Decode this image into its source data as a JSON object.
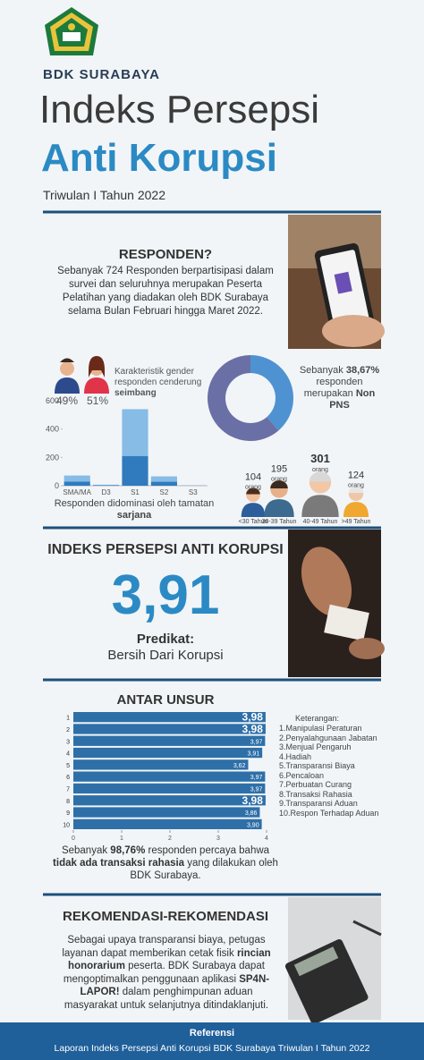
{
  "header": {
    "org": "BDK SURABAYA",
    "title_line1": "Indeks Persepsi",
    "title_line2": "Anti Korupsi",
    "subtitle": "Triwulan I Tahun 2022"
  },
  "responden": {
    "title": "RESPONDEN?",
    "text": "Sebanyak 724 Responden berpartisipasi dalam survei dan seluruhnya merupakan Peserta Pelatihan yang diadakan oleh BDK Surabaya selama Bulan Februari hingga Maret 2022."
  },
  "gender": {
    "text_parts": [
      "Karakteristik gender responden cenderung ",
      "seimbang"
    ],
    "male_label": "49%",
    "female_label": "51%"
  },
  "employment": {
    "chart_data": {
      "type": "donut",
      "values": [
        38.67,
        61.33
      ],
      "colors": [
        "#4f92d2",
        "#6a6fa6"
      ]
    },
    "text_parts": [
      "Sebanyak ",
      "38,67%",
      " responden merupakan ",
      "Non PNS"
    ]
  },
  "education": {
    "chart_data": {
      "type": "stacked_bar",
      "categories": [
        "SMA/MA",
        "D3",
        "S1",
        "S2",
        "S3"
      ],
      "series": [
        {
          "color": "#2f7bbd",
          "values": [
            30,
            3,
            210,
            28,
            1
          ]
        },
        {
          "color": "#86bce6",
          "values": [
            42,
            4,
            330,
            38,
            1
          ]
        }
      ],
      "ylim": [
        0,
        650
      ],
      "yticks": [
        0,
        200,
        400,
        600
      ]
    },
    "caption_parts": [
      "Responden didominasi oleh tamatan ",
      "sarjana"
    ]
  },
  "age": {
    "chart_data": {
      "type": "people",
      "categories": [
        "<30 Tahun",
        "30-39 Tahun",
        "40-49 Tahun",
        ">49 Tahun"
      ],
      "values": [
        104,
        195,
        301,
        124
      ]
    },
    "unit": "orang"
  },
  "ipak": {
    "title": "INDEKS PERSEPSI ANTI KORUPSI",
    "score": "3,91",
    "predikat_label": "Predikat:",
    "predikat": "Bersih Dari Korupsi"
  },
  "unsur": {
    "title": "ANTAR UNSUR",
    "chart_data": {
      "type": "hbar",
      "categories": [
        "1",
        "2",
        "3",
        "4",
        "5",
        "6",
        "7",
        "8",
        "9",
        "10"
      ],
      "values": [
        3.98,
        3.98,
        3.97,
        3.91,
        3.62,
        3.97,
        3.97,
        3.98,
        3.86,
        3.9
      ],
      "value_labels": [
        "3,98",
        "3,98",
        "3,97",
        "3,91",
        "3,62",
        "3,97",
        "3,97",
        "3,98",
        "3,86",
        "3,90"
      ],
      "color": "#2e6fa8",
      "xlim": [
        0,
        4
      ],
      "xticks": [
        0,
        1,
        2,
        3,
        4
      ]
    },
    "legend_title": "Keterangan:",
    "legend_items": [
      "1.Manipulasi Peraturan",
      "2.Penyalahgunaan Jabatan",
      "3.Menjual Pengaruh",
      "4.Hadiah",
      "5.Transparansi Biaya",
      "6.Pencaloan",
      "7.Perbuatan Curang",
      "8.Transaksi Rahasia",
      "9.Transparansi Aduan",
      "10.Respon Terhadap Aduan"
    ],
    "note_parts": [
      "Sebanyak ",
      "98,76%",
      " responden percaya bahwa ",
      "tidak ada transaksi rahasia",
      " yang dilakukan oleh BDK Surabaya."
    ]
  },
  "rekomendasi": {
    "title": "REKOMENDASI-REKOMENDASI",
    "text_parts": [
      "Sebagai upaya transparansi biaya, petugas layanan dapat memberikan cetak fisik ",
      "rincian honorarium",
      " peserta.  BDK Surabaya dapat mengoptimalkan penggunaan aplikasi ",
      "SP4N-LAPOR!",
      " dalam penghimpunan aduan masyarakat untuk selanjutnya ditindaklanjuti."
    ]
  },
  "footer": {
    "title": "Referensi",
    "text": "Laporan Indeks Persepsi Anti Korupsi BDK Surabaya Triwulan I Tahun 2022"
  }
}
